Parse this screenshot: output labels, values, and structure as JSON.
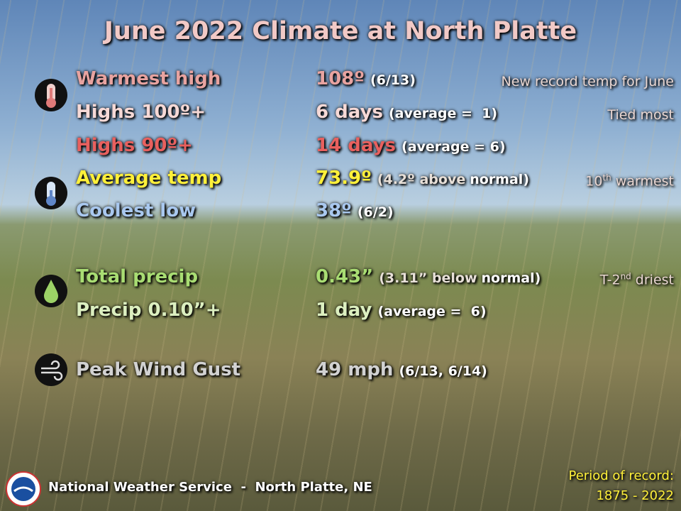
{
  "title": "June 2022 Climate at North Platte",
  "rows": [
    {
      "label": "Warmest high",
      "value": "108º",
      "detail": "(6/13)",
      "note": "New record temp for June"
    },
    {
      "label": "Highs 100º+",
      "value": "6 days",
      "detail": "(average =  1)",
      "note": "Tied most"
    },
    {
      "label": "Highs 90º+",
      "value": "14 days",
      "detail": "(average = 6)"
    },
    {
      "label": "Average temp",
      "value": "73.9º",
      "detail": "(4.2º above",
      "detail_end": "normal)",
      "note": "10",
      "note_sup": "th",
      "note_end": "warmest"
    },
    {
      "label": "Coolest low",
      "value": "38º",
      "detail": "(6/2)"
    },
    {
      "label": "Total precip",
      "value": "0.43”",
      "detail": "(3.11” below",
      "detail_end": "normal)",
      "note": "T-2",
      "note_sup": "nd",
      "note_end": "driest"
    },
    {
      "label": "Precip 0.10”+",
      "value": "1 day",
      "detail": "(average =  6)"
    },
    {
      "label": "Peak Wind Gust",
      "value": "49 mph",
      "detail": "(6/13, 6/14)"
    }
  ],
  "footer": {
    "agency": "National Weather Service  -  North Platte, NE",
    "period": "Period of record:",
    "years": "1875 - 2022"
  }
}
